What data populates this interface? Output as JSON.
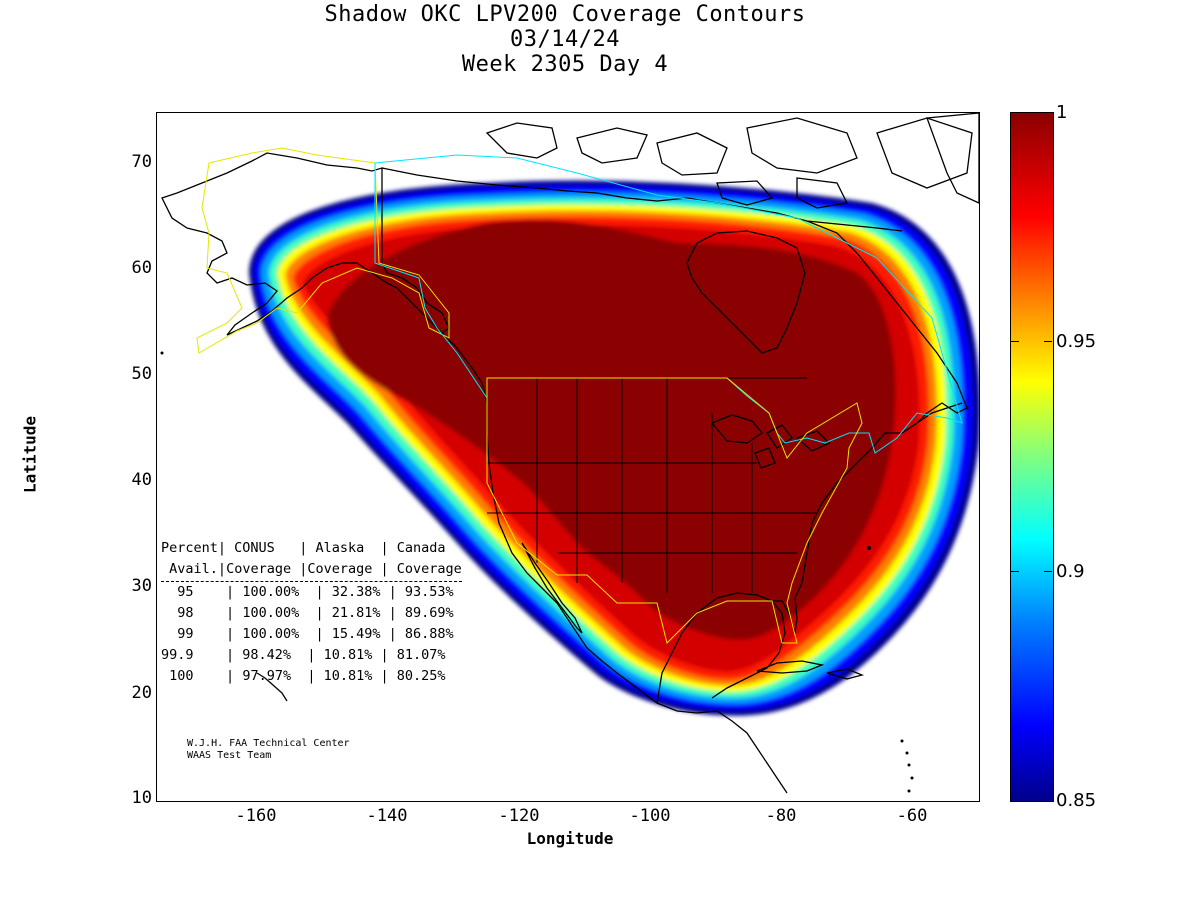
{
  "title": {
    "line1": "Shadow OKC LPV200 Coverage Contours",
    "line2": "03/14/24",
    "line3": "Week 2305 Day 4"
  },
  "axes": {
    "xlabel": "Longitude",
    "ylabel": "Latitude",
    "xticks": [
      "-160",
      "-140",
      "-120",
      "-100",
      "-80",
      "-60"
    ],
    "yticks": [
      "10",
      "20",
      "30",
      "40",
      "50",
      "60",
      "70"
    ],
    "xlim": [
      -175,
      -50
    ],
    "ylim": [
      10,
      75
    ]
  },
  "colorbar": {
    "ticks": [
      "0.85",
      "0.9",
      "0.95",
      "1"
    ],
    "range": [
      0.85,
      1
    ],
    "colormap": "jet"
  },
  "stats_table": {
    "header1": [
      "Percent",
      "CONUS",
      "Alaska",
      "Canada"
    ],
    "header2": [
      "Avail.",
      "Coverage",
      "Coverage",
      "Coverage"
    ],
    "rows": [
      [
        "95",
        "100.00%",
        "32.38%",
        "93.53%"
      ],
      [
        "98",
        "100.00%",
        "21.81%",
        "89.69%"
      ],
      [
        "99",
        "100.00%",
        "15.49%",
        "86.88%"
      ],
      [
        "99.9",
        "98.42%",
        "10.81%",
        "81.07%"
      ],
      [
        "100",
        "97.97%",
        "10.81%",
        "80.25%"
      ]
    ]
  },
  "credit": {
    "line1": "W.J.H. FAA Technical Center",
    "line2": "WAAS Test Team"
  },
  "colors": {
    "dark_red": "#8b0000",
    "red": "#d40000",
    "coastline": "#000000",
    "alaska_boundary": "#ffff00",
    "canada_boundary": "#00e5ff"
  }
}
